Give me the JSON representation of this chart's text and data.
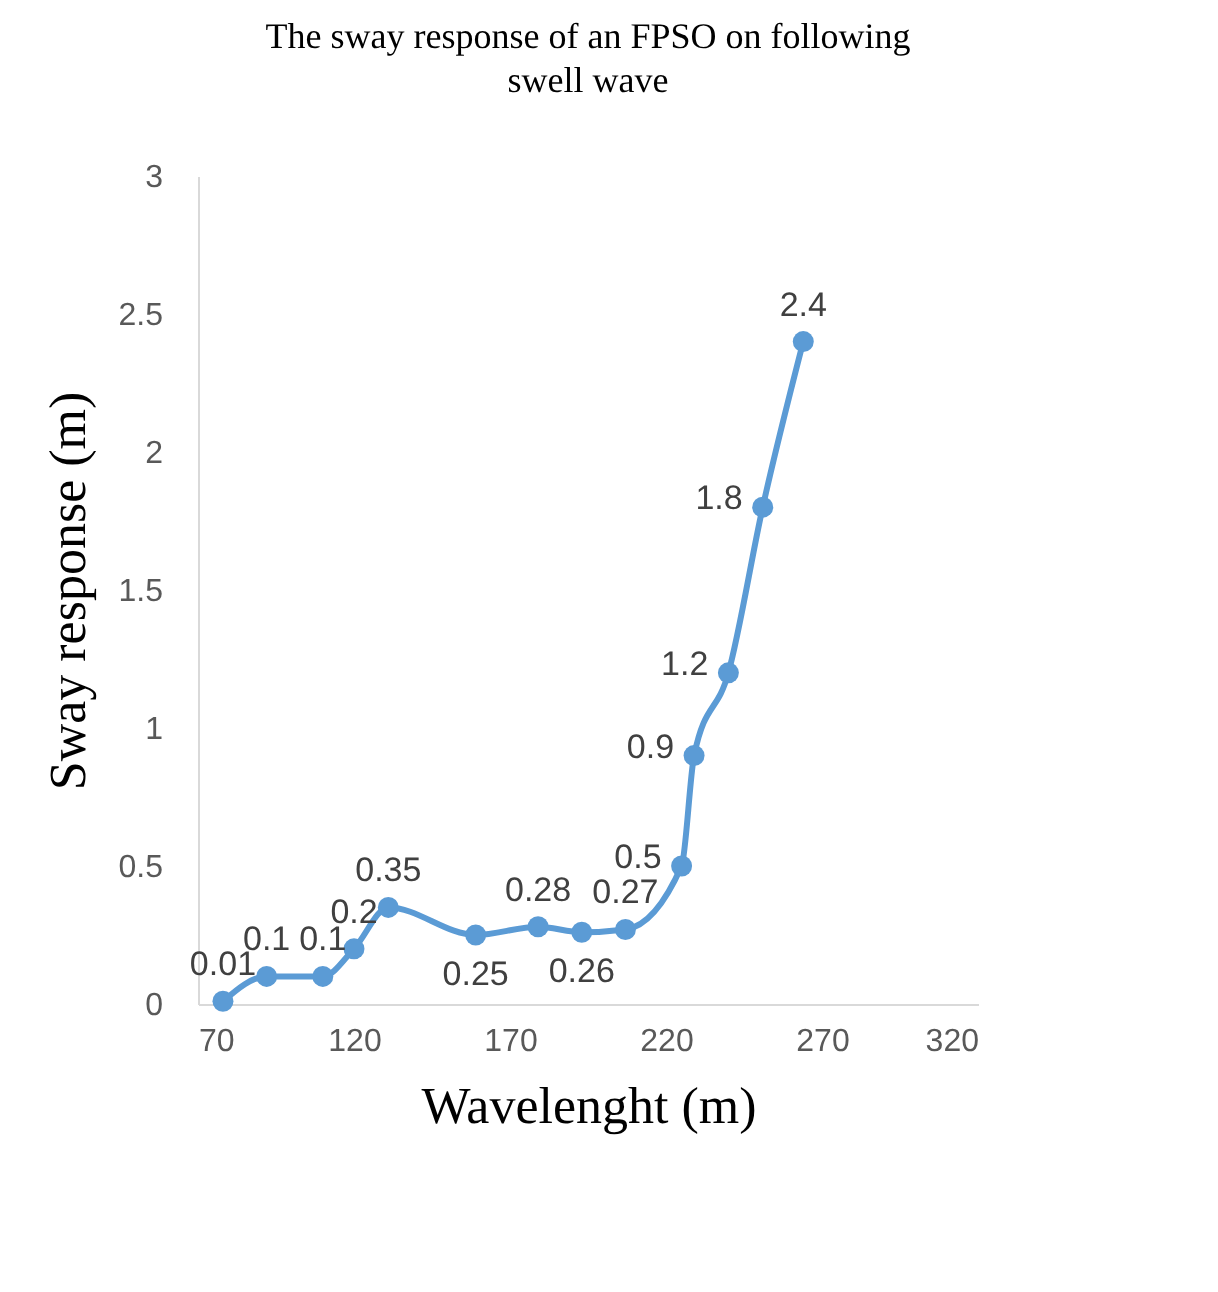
{
  "chart_data": {
    "type": "line",
    "title": "The sway response of an FPSO on following swell wave",
    "xlabel": "Wavelenght (m)",
    "ylabel": "Sway response (m)",
    "x": [
      78,
      92,
      110,
      120,
      131,
      159,
      179,
      193,
      207,
      225,
      229,
      240,
      251,
      264
    ],
    "series": [
      {
        "color": "#5b9bd5",
        "values": [
          0.01,
          0.1,
          0.1,
          0.2,
          0.35,
          0.25,
          0.28,
          0.26,
          0.27,
          0.5,
          0.9,
          1.2,
          1.8,
          2.4
        ]
      }
    ],
    "xlim": [
      70,
      320
    ],
    "xticks": [
      70,
      120,
      170,
      220,
      270,
      320
    ],
    "ylim": [
      0,
      3
    ],
    "yticks": [
      0,
      0.5,
      1,
      1.5,
      2,
      2.5,
      3
    ],
    "grid": false,
    "legend": false,
    "marker": "circle",
    "line_style": "solid",
    "data_labels": true
  }
}
